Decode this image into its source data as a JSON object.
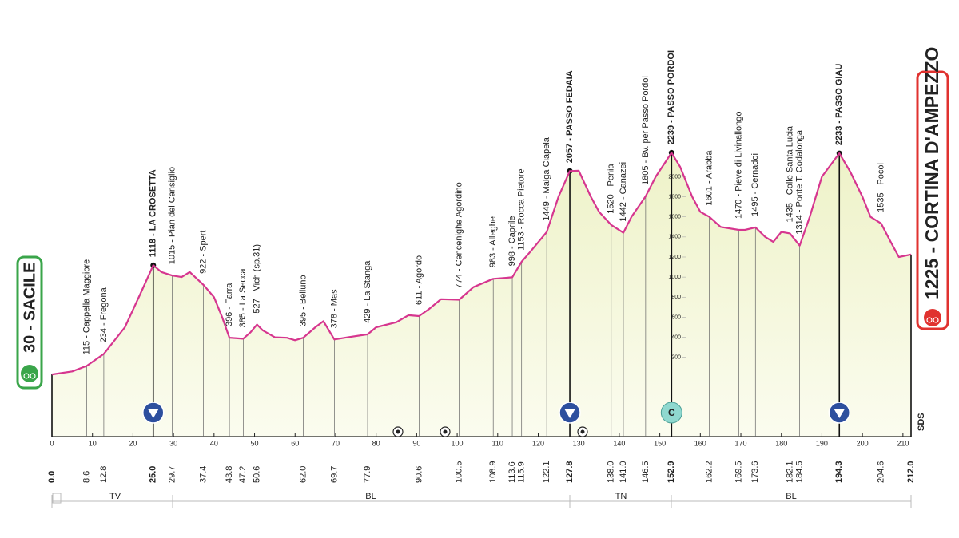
{
  "chart_data": {
    "type": "line",
    "start": "30 - SACILE",
    "finish": "1225 - CORTINA D'AMPEZZO",
    "logo": "SDS",
    "climb_marker": "C",
    "color": "#d6368f",
    "x": [
      0,
      5,
      8.6,
      12.8,
      18,
      22,
      25,
      27,
      29.7,
      32,
      34,
      37.4,
      40,
      42,
      43.8,
      47.2,
      49,
      50.6,
      52,
      55,
      58,
      60,
      62,
      65,
      67,
      69.7,
      73,
      77.9,
      80,
      85,
      88,
      90.6,
      93,
      96,
      100.5,
      104,
      108.9,
      113.6,
      115.9,
      118,
      122.1,
      125,
      127.8,
      130,
      133,
      135,
      138,
      141,
      143,
      146.5,
      149,
      152.9,
      155,
      158,
      160,
      162.2,
      165,
      169.5,
      171,
      173.6,
      176,
      178,
      180,
      182.1,
      184.5,
      187,
      190,
      194.3,
      197,
      200,
      202,
      204.6,
      207,
      209,
      212
    ],
    "values": [
      30,
      60,
      115,
      234,
      500,
      850,
      1118,
      1050,
      1015,
      1000,
      1050,
      922,
      800,
      600,
      396,
      385,
      450,
      527,
      470,
      400,
      395,
      370,
      395,
      500,
      560,
      378,
      400,
      429,
      500,
      550,
      620,
      611,
      680,
      780,
      774,
      900,
      983,
      998,
      1153,
      1250,
      1449,
      1800,
      2057,
      2060,
      1800,
      1650,
      1520,
      1442,
      1600,
      1805,
      2000,
      2239,
      2100,
      1800,
      1650,
      1601,
      1500,
      1470,
      1470,
      1495,
      1400,
      1350,
      1450,
      1435,
      1314,
      1600,
      2000,
      2233,
      2050,
      1800,
      1600,
      1535,
      1350,
      1200,
      1225
    ],
    "xlim": [
      0,
      212
    ],
    "xticks": [
      0,
      10,
      20,
      30,
      40,
      50,
      60,
      70,
      80,
      90,
      100,
      110,
      120,
      130,
      140,
      150,
      160,
      170,
      180,
      190,
      200,
      210
    ],
    "ylim": [
      -590,
      2600
    ],
    "yticks": [
      200,
      400,
      600,
      800,
      1000,
      1200,
      1400,
      1600,
      1800,
      2000
    ],
    "waypoints": [
      {
        "km": {
          "value": 0,
          "label": "0.0"
        },
        "summit": true
      },
      {
        "km": 8.6,
        "label": "115 - Cappella Maggiore"
      },
      {
        "km": 12.8,
        "label": "234 - Fregona"
      },
      {
        "km": {
          "value": 25,
          "label": "25.0"
        },
        "label": "1118 - LA CROSETTA",
        "summit": true
      },
      {
        "km": 29.7,
        "label": "1015 - Pian del Cansiglio"
      },
      {
        "km": 37.4,
        "label": "922 - Spert"
      },
      {
        "km": 43.8,
        "label": "396 - Farra"
      },
      {
        "km": 47.2,
        "label": "385 - La Secca"
      },
      {
        "km": 50.6,
        "label": "527 - Vich (sp.31)"
      },
      {
        "km": {
          "value": 62,
          "label": "62.0"
        },
        "label": "395 - Belluno"
      },
      {
        "km": 69.7,
        "label": "378 - Mas"
      },
      {
        "km": 77.9,
        "label": "429 - La Stanga"
      },
      {
        "km": 90.6,
        "label": "611 - Agordo"
      },
      {
        "km": 100.5,
        "label": "774 - Cencenighe Agordino"
      },
      {
        "km": 108.9,
        "label": "983 - Alleghe"
      },
      {
        "km": 113.6,
        "label": "998 - Caprile"
      },
      {
        "km": 115.9,
        "label": "1153 - Rocca Pietore"
      },
      {
        "km": 122.1,
        "label": "1449 - Malga Ciapela"
      },
      {
        "km": 127.8,
        "label": "2057 - PASSO FEDAIA",
        "summit": true
      },
      {
        "km": {
          "value": 138,
          "label": "138.0"
        },
        "label": "1520 - Penia"
      },
      {
        "km": {
          "value": 141,
          "label": "141.0"
        },
        "label": "1442 - Canazei"
      },
      {
        "km": 146.5,
        "label": "1805 - Bv. per Passo Pordoi"
      },
      {
        "km": 152.9,
        "label": "2239 - PASSO PORDOI",
        "summit": true
      },
      {
        "km": 162.2,
        "label": "1601 - Arabba"
      },
      {
        "km": 169.5,
        "label": "1470 - Pieve di Livinallongo"
      },
      {
        "km": 173.6,
        "label": "1495 - Cernadoi"
      },
      {
        "km": 182.1,
        "label": "1435 - Colle Santa Lucia"
      },
      {
        "km": 184.5,
        "label": "1314 - Ponte T. Codalonga"
      },
      {
        "km": 194.3,
        "label": "2233 - PASSO GIAU",
        "summit": true
      },
      {
        "km": 204.6,
        "label": "1535 - Pocol"
      },
      {
        "km": {
          "value": 212,
          "label": "212.0"
        },
        "summit": true
      }
    ],
    "regions": [
      "TV",
      "BL",
      "TN",
      "BL"
    ]
  }
}
